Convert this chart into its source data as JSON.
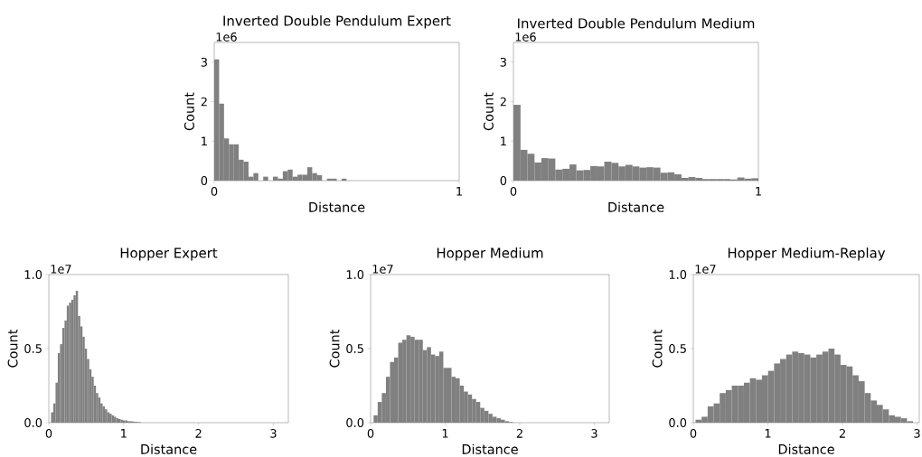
{
  "chart_data": [
    {
      "type": "histogram",
      "title": "Inverted Double Pendulum Expert",
      "xlabel": "Distance",
      "ylabel": "Count",
      "annotations": [
        "1e6"
      ],
      "color": "#808080",
      "bins": [
        0,
        0.02,
        0.04,
        0.06,
        0.08,
        0.1,
        0.12,
        0.14,
        0.16,
        0.18,
        0.2,
        0.22,
        0.24,
        0.26,
        0.28,
        0.3,
        0.32,
        0.34,
        0.36,
        0.38,
        0.4,
        0.42,
        0.44,
        0.46,
        0.48,
        0.5,
        0.52,
        0.54
      ],
      "values": [
        3.07,
        1.95,
        1.07,
        0.92,
        0.92,
        0.53,
        0.48,
        0.1,
        0.19,
        0,
        0.1,
        0,
        0.1,
        0.05,
        0.24,
        0.28,
        0.1,
        0.15,
        0.15,
        0.34,
        0.19,
        0.14,
        0,
        0.05,
        0.05,
        0,
        0.05
      ],
      "xlim": [
        0,
        1
      ],
      "ylim": [
        0,
        3.5
      ],
      "xticks": [
        0,
        1
      ],
      "yticks": [
        0,
        1,
        2,
        3
      ]
    },
    {
      "type": "histogram",
      "title": "Inverted Double Pendulum Medium",
      "xlabel": "Distance",
      "ylabel": "Count",
      "annotations": [
        "1e6"
      ],
      "color": "#808080",
      "bins": [
        0,
        0.029,
        0.057,
        0.086,
        0.114,
        0.143,
        0.171,
        0.2,
        0.229,
        0.257,
        0.286,
        0.314,
        0.343,
        0.371,
        0.4,
        0.429,
        0.457,
        0.486,
        0.514,
        0.543,
        0.571,
        0.6,
        0.629,
        0.657,
        0.686,
        0.714,
        0.743,
        0.771,
        0.8,
        0.829,
        0.857,
        0.886,
        0.914,
        0.943,
        0.971,
        1
      ],
      "values": [
        1.92,
        0.78,
        0.68,
        0.46,
        0.57,
        0.56,
        0.28,
        0.3,
        0.41,
        0.26,
        0.27,
        0.37,
        0.36,
        0.48,
        0.45,
        0.36,
        0.4,
        0.36,
        0.33,
        0.34,
        0.33,
        0.2,
        0.21,
        0.16,
        0.07,
        0.09,
        0.07,
        0.04,
        0.04,
        0.04,
        0.04,
        0.03,
        0.08,
        0.05,
        0.06
      ],
      "xlim": [
        0,
        1
      ],
      "ylim": [
        0,
        3.5
      ],
      "xticks": [
        0,
        1
      ],
      "yticks": [
        0,
        1,
        2,
        3
      ]
    },
    {
      "type": "histogram",
      "title": "Hopper Expert",
      "xlabel": "Distance",
      "ylabel": "Count",
      "annotations": [
        "1e7"
      ],
      "color": "#808080",
      "bins": [
        0.03,
        0.06,
        0.09,
        0.12,
        0.15,
        0.18,
        0.21,
        0.24,
        0.27,
        0.3,
        0.33,
        0.36,
        0.39,
        0.42,
        0.45,
        0.48,
        0.51,
        0.54,
        0.57,
        0.6,
        0.63,
        0.66,
        0.69,
        0.72,
        0.75,
        0.78,
        0.81,
        0.84,
        0.87,
        0.9,
        0.93,
        0.96,
        0.99,
        1.02,
        1.05,
        1.08,
        1.11,
        1.14,
        1.17,
        1.2,
        1.23,
        1.26,
        1.29,
        1.32,
        1.35
      ],
      "values": [
        0.07,
        0.13,
        0.27,
        0.47,
        0.53,
        0.64,
        0.69,
        0.79,
        0.81,
        0.83,
        0.86,
        0.89,
        0.72,
        0.65,
        0.58,
        0.5,
        0.43,
        0.36,
        0.31,
        0.25,
        0.2,
        0.17,
        0.13,
        0.11,
        0.09,
        0.07,
        0.06,
        0.05,
        0.04,
        0.03,
        0.025,
        0.02,
        0.015,
        0.015,
        0.01,
        0.01,
        0.008,
        0.006,
        0.005,
        0.004,
        null,
        null,
        null,
        null
      ],
      "xlim": [
        0,
        3.2
      ],
      "ylim": [
        0,
        1
      ],
      "xticks": [
        0,
        1,
        2,
        3
      ],
      "yticks": [
        {
          "value": 0,
          "label": "0.0"
        },
        {
          "value": 0.5,
          "label": "0.5"
        },
        {
          "value": 1,
          "label": "1.0"
        }
      ]
    },
    {
      "type": "histogram",
      "title": "Hopper Medium",
      "xlabel": "Distance",
      "ylabel": "Count",
      "annotations": [
        "1e7"
      ],
      "color": "#808080",
      "bins": [
        0.04,
        0.095,
        0.15,
        0.205,
        0.26,
        0.315,
        0.37,
        0.425,
        0.48,
        0.535,
        0.59,
        0.645,
        0.7,
        0.755,
        0.81,
        0.865,
        0.92,
        0.975,
        1.03,
        1.085,
        1.14,
        1.195,
        1.25,
        1.305,
        1.36,
        1.415,
        1.47,
        1.525,
        1.58,
        1.635,
        1.69,
        1.745,
        1.8,
        1.855,
        1.91
      ],
      "values": [
        0.05,
        0.14,
        0.2,
        0.31,
        0.41,
        0.44,
        0.54,
        0.56,
        0.59,
        0.58,
        0.56,
        0.56,
        0.49,
        0.51,
        0.46,
        0.45,
        0.48,
        0.37,
        0.37,
        0.31,
        0.3,
        0.25,
        0.21,
        0.19,
        0.16,
        0.14,
        0.1,
        0.08,
        0.06,
        0.04,
        0.03,
        0.02,
        0.01,
        0.004
      ],
      "xlim": [
        0,
        3.2
      ],
      "ylim": [
        0,
        1
      ],
      "xticks": [
        0,
        1,
        2,
        3
      ],
      "yticks": [
        {
          "value": 0,
          "label": "0.0"
        },
        {
          "value": 0.5,
          "label": "0.5"
        },
        {
          "value": 1,
          "label": "1.0"
        }
      ]
    },
    {
      "type": "histogram",
      "title": "Hopper Medium-Replay",
      "xlabel": "Distance",
      "ylabel": "Count",
      "annotations": [
        "1e7"
      ],
      "color": "#808080",
      "bins": [
        0.03,
        0.111,
        0.192,
        0.273,
        0.354,
        0.435,
        0.516,
        0.597,
        0.678,
        0.759,
        0.84,
        0.921,
        1.002,
        1.083,
        1.164,
        1.245,
        1.326,
        1.407,
        1.488,
        1.569,
        1.65,
        1.731,
        1.812,
        1.893,
        1.974,
        2.055,
        2.136,
        2.217,
        2.298,
        2.379,
        2.46,
        2.541,
        2.622,
        2.703,
        2.784,
        2.865,
        2.946
      ],
      "values": [
        0.02,
        0.04,
        0.11,
        0.13,
        0.2,
        0.22,
        0.25,
        0.25,
        0.27,
        0.3,
        0.29,
        0.32,
        0.35,
        0.4,
        0.43,
        0.46,
        0.48,
        0.47,
        0.46,
        0.44,
        0.46,
        0.48,
        0.5,
        0.46,
        0.39,
        0.38,
        0.32,
        0.28,
        0.2,
        0.15,
        0.12,
        0.09,
        0.05,
        0.04,
        0.03,
        0.01
      ],
      "xlim": [
        0,
        3.03
      ],
      "ylim": [
        0,
        1
      ],
      "xticks": [
        0,
        1,
        2,
        3
      ],
      "yticks": [
        {
          "value": 0,
          "label": "0.0"
        },
        {
          "value": 0.5,
          "label": "0.5"
        },
        {
          "value": 1,
          "label": "1.0"
        }
      ]
    }
  ]
}
